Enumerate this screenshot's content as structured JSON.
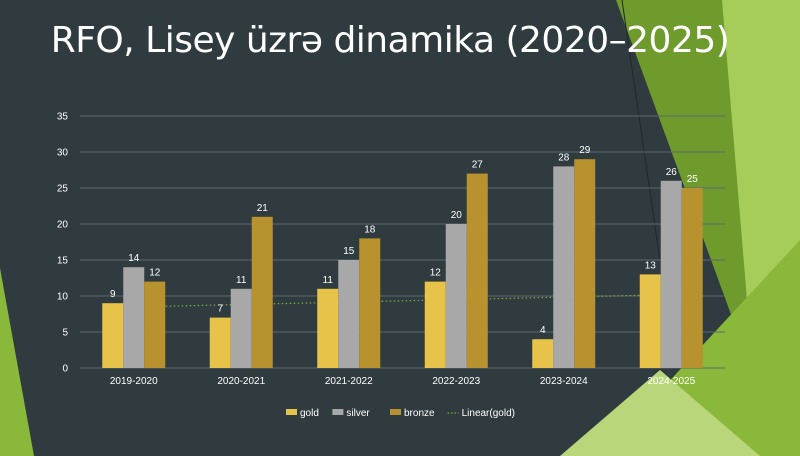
{
  "slide": {
    "title": "RFO, Lisey üzrə dinamika (2020–2025)",
    "colors": {
      "background": "#2f3b3e",
      "accent_green_light": "#a6cc5a",
      "accent_green": "#8ab83a",
      "accent_green_dark": "#6f9a2c"
    }
  },
  "chart_data": {
    "type": "bar",
    "title": "",
    "xlabel": "",
    "ylabel": "",
    "categories": [
      "2019-2020",
      "2020-2021",
      "2021-2022",
      "2022-2023",
      "2023-2024",
      "2024-2025"
    ],
    "series": [
      {
        "name": "gold",
        "values": [
          9,
          7,
          11,
          12,
          4,
          13
        ],
        "color": "#e8c34a"
      },
      {
        "name": "silver",
        "values": [
          14,
          11,
          15,
          20,
          28,
          26
        ],
        "color": "#a8a8a8"
      },
      {
        "name": "bronze",
        "values": [
          12,
          21,
          18,
          27,
          29,
          25
        ],
        "color": "#b8922e"
      }
    ],
    "trendline": {
      "name": "Linear(gold)",
      "type": "linear",
      "of_series": "gold",
      "style": "dotted",
      "color": "#7fae3a"
    },
    "ylim": [
      0,
      35
    ],
    "yticks": [
      0,
      5,
      10,
      15,
      20,
      25,
      30,
      35
    ],
    "grid": true,
    "data_labels": true,
    "legend": "bottom",
    "label_color": "#ffffff"
  }
}
